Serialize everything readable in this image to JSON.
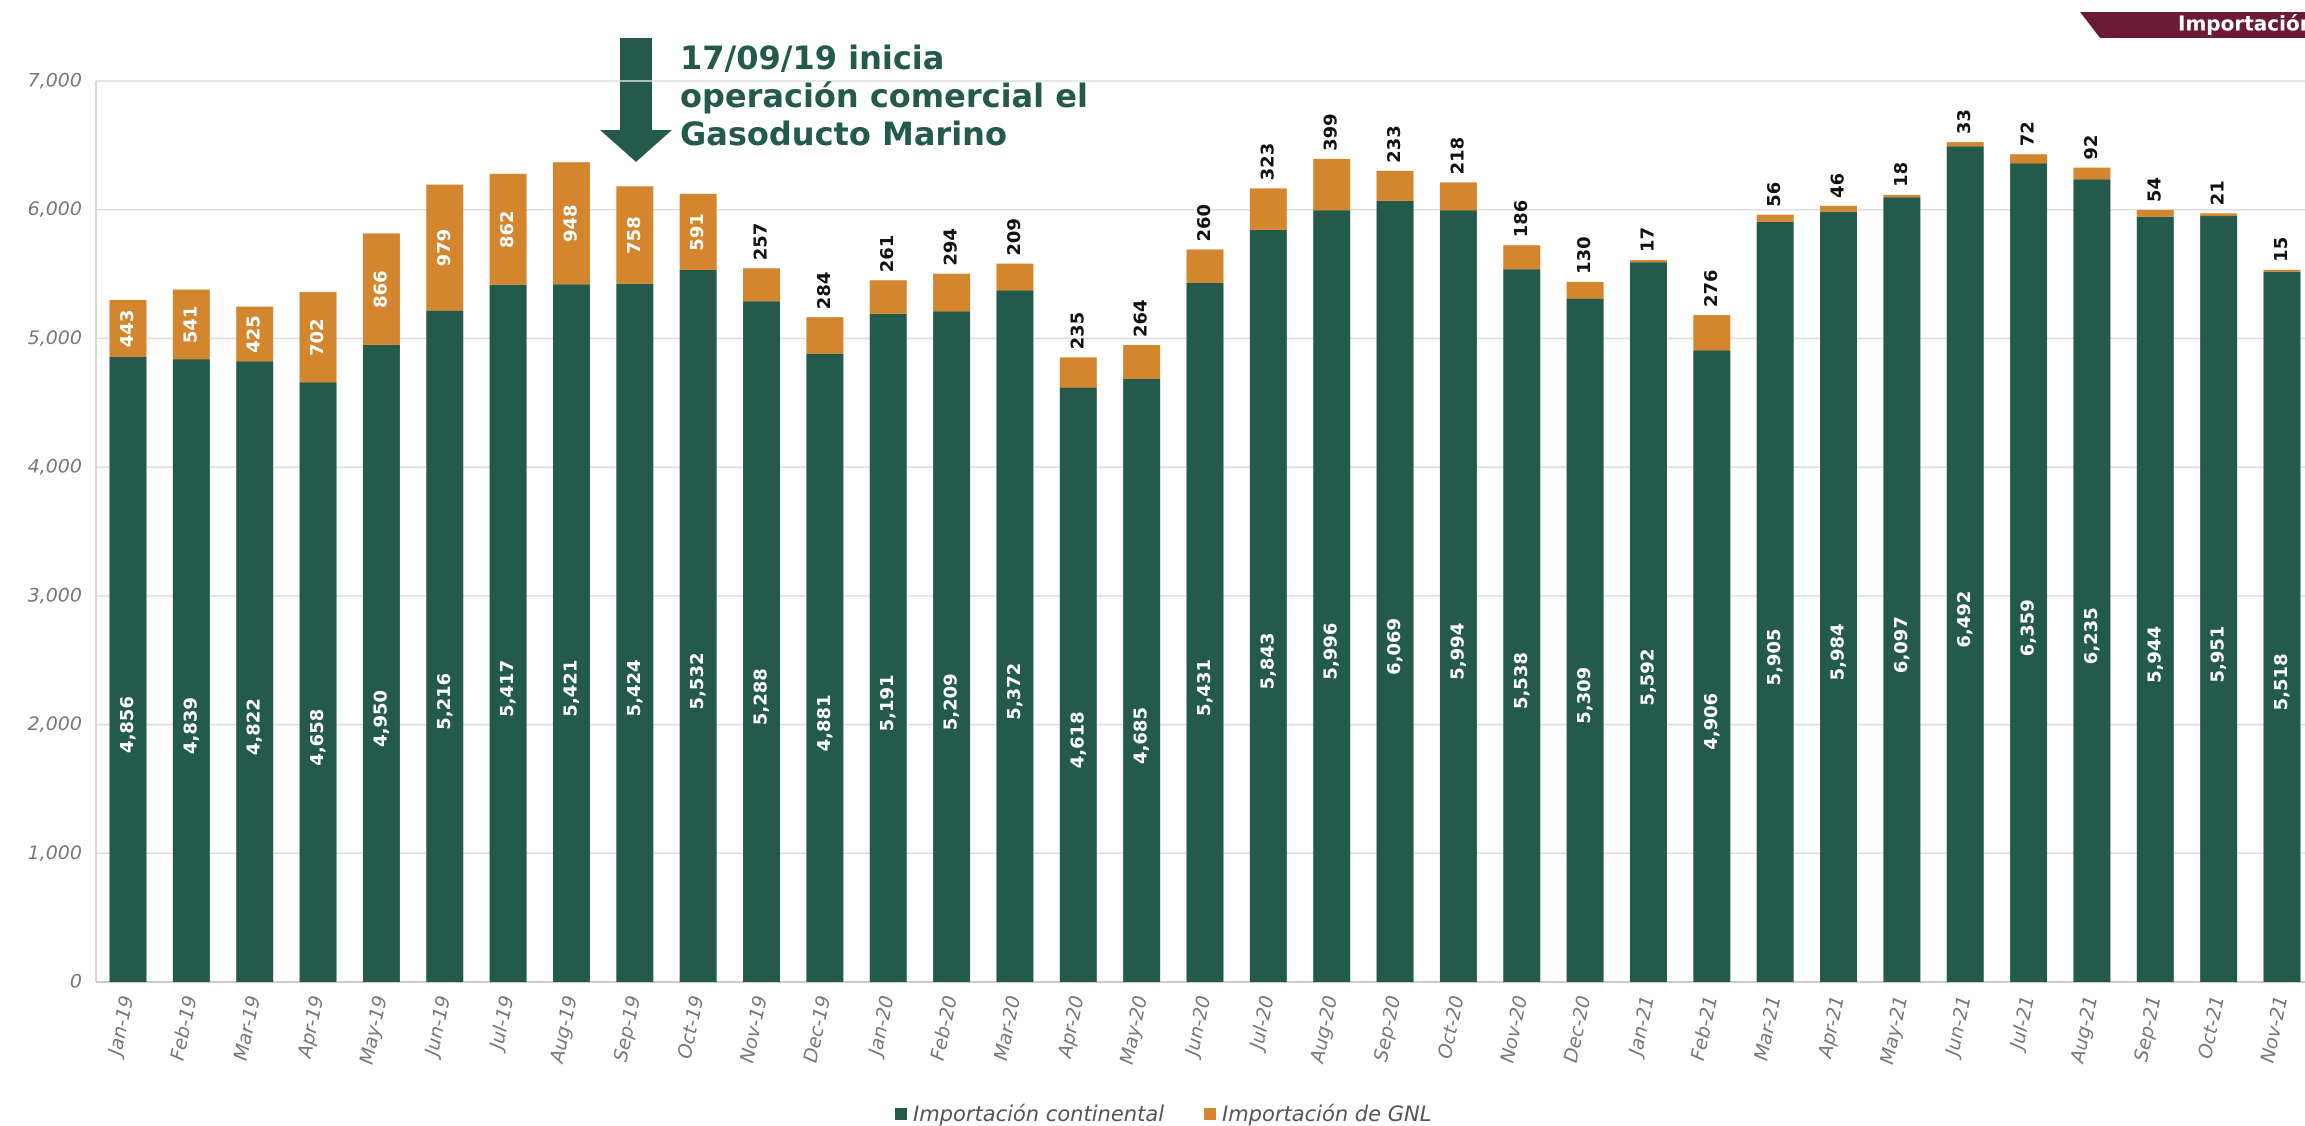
{
  "chart_data": {
    "type": "stacked-bar",
    "banner": "Importación",
    "annotation": [
      "17/09/19 inicia",
      "operación comercial el",
      "Gasoducto Marino"
    ],
    "categories": [
      "Jan-19",
      "Feb-19",
      "Mar-19",
      "Apr-19",
      "May-19",
      "Jun-19",
      "Jul-19",
      "Aug-19",
      "Sep-19",
      "Oct-19",
      "Nov-19",
      "Dec-19",
      "Jan-20",
      "Feb-20",
      "Mar-20",
      "Apr-20",
      "May-20",
      "Jun-20",
      "Jul-20",
      "Aug-20",
      "Sep-20",
      "Oct-20",
      "Nov-20",
      "Dec-20",
      "Jan-21",
      "Feb-21",
      "Mar-21",
      "Apr-21",
      "May-21",
      "Jun-21",
      "Jul-21",
      "Aug-21",
      "Sep-21",
      "Oct-21",
      "Nov-21"
    ],
    "series": [
      {
        "name": "Importación continental",
        "color": "#235a4c",
        "values": [
          4856,
          4839,
          4822,
          4658,
          4950,
          5216,
          5417,
          5421,
          5424,
          5532,
          5288,
          4881,
          5191,
          5209,
          5372,
          4618,
          4685,
          5431,
          5843,
          5996,
          6069,
          5994,
          5538,
          5309,
          5592,
          4906,
          5905,
          5984,
          6097,
          6492,
          6359,
          6235,
          5944,
          5951,
          5518
        ],
        "value_labels": [
          "4,856",
          "4,839",
          "4,822",
          "4,658",
          "4,950",
          "5,216",
          "5,417",
          "5,421",
          "5,424",
          "5,532",
          "5,288",
          "4,881",
          "5,191",
          "5,209",
          "5,372",
          "4,618",
          "4,685",
          "5,431",
          "5,843",
          "5,996",
          "6,069",
          "5,994",
          "5,538",
          "5,309",
          "5,592",
          "4,906",
          "5,905",
          "5,984",
          "6,097",
          "6,492",
          "6,359",
          "6,235",
          "5,944",
          "5,951",
          "5,518"
        ]
      },
      {
        "name": "Importación de GNL",
        "color": "#d4862e",
        "values": [
          443,
          541,
          425,
          702,
          866,
          979,
          862,
          948,
          758,
          591,
          257,
          284,
          261,
          294,
          209,
          235,
          264,
          260,
          323,
          399,
          233,
          218,
          186,
          130,
          17,
          276,
          56,
          46,
          18,
          33,
          72,
          92,
          54,
          21,
          15
        ]
      }
    ],
    "ylim": [
      0,
      7000
    ],
    "yticks": [
      0,
      {
        "value": 1000,
        "label": "1,000"
      },
      {
        "value": 2000,
        "label": "2,000"
      },
      {
        "value": 3000,
        "label": "3,000"
      },
      {
        "value": 4000,
        "label": "4,000"
      },
      {
        "value": 5000,
        "label": "5,000"
      },
      {
        "value": 6000,
        "label": "6,000"
      },
      {
        "value": 7000,
        "label": "7,000"
      }
    ],
    "grid": true
  }
}
